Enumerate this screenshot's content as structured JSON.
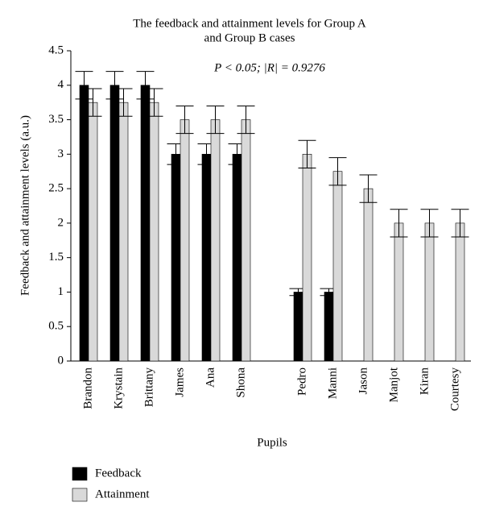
{
  "chart_data": {
    "type": "bar",
    "title": [
      "The feedback and attainment levels for Group A",
      "and Group B cases"
    ],
    "annotation": "P < 0.05; |R| = 0.9276",
    "x_label": "Pupils",
    "y_label": "Feedback and attainment levels (a.u.)",
    "categories": [
      "Brandon",
      "Krystain",
      "Brittany",
      "James",
      "Ana",
      "Shona",
      null,
      "Pedro",
      "Manni",
      "Jason",
      "Manjot",
      "Kiran",
      "Courtesy"
    ],
    "series": [
      {
        "name": "Feedback",
        "color": "#000000",
        "values": [
          4,
          4,
          4,
          3,
          3,
          3,
          null,
          1,
          1,
          null,
          null,
          null,
          null
        ],
        "errors": [
          0.2,
          0.2,
          0.2,
          0.15,
          0.15,
          0.15,
          null,
          0.05,
          0.05,
          null,
          null,
          null,
          null
        ]
      },
      {
        "name": "Attainment",
        "color": "#d9d9d9",
        "values": [
          3.75,
          3.75,
          3.75,
          3.5,
          3.5,
          3.5,
          null,
          3,
          2.75,
          2.5,
          2,
          2,
          2
        ],
        "errors": [
          0.2,
          0.2,
          0.2,
          0.2,
          0.2,
          0.2,
          null,
          0.2,
          0.2,
          0.2,
          0.2,
          0.2,
          0.2
        ]
      }
    ],
    "ylim": [
      0,
      4.5
    ],
    "yticks": [
      0,
      0.5,
      1,
      1.5,
      2,
      2.5,
      3,
      3.5,
      4,
      4.5
    ],
    "legend": "bottom-left"
  }
}
